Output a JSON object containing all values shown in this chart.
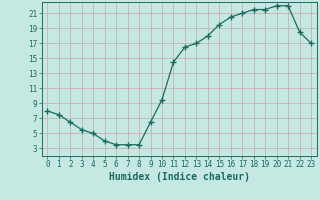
{
  "x": [
    0,
    1,
    2,
    3,
    4,
    5,
    6,
    7,
    8,
    9,
    10,
    11,
    12,
    13,
    14,
    15,
    16,
    17,
    18,
    19,
    20,
    21,
    22,
    23
  ],
  "y": [
    8,
    7.5,
    6.5,
    5.5,
    5,
    4,
    3.5,
    3.5,
    3.5,
    6.5,
    9.5,
    14.5,
    16.5,
    17,
    18,
    19.5,
    20.5,
    21,
    21.5,
    21.5,
    22,
    22,
    18.5,
    17
  ],
  "line_color": "#1a6b5e",
  "marker": "+",
  "marker_size": 4,
  "bg_color": "#c5e8e2",
  "grid_color": "#b0d8d0",
  "xlabel": "Humidex (Indice chaleur)",
  "ylim": [
    2,
    22.5
  ],
  "xlim": [
    -0.5,
    23.5
  ],
  "yticks": [
    3,
    5,
    7,
    9,
    11,
    13,
    15,
    17,
    19,
    21
  ],
  "xticks": [
    0,
    1,
    2,
    3,
    4,
    5,
    6,
    7,
    8,
    9,
    10,
    11,
    12,
    13,
    14,
    15,
    16,
    17,
    18,
    19,
    20,
    21,
    22,
    23
  ],
  "tick_fontsize": 5.5,
  "label_fontsize": 7.0
}
